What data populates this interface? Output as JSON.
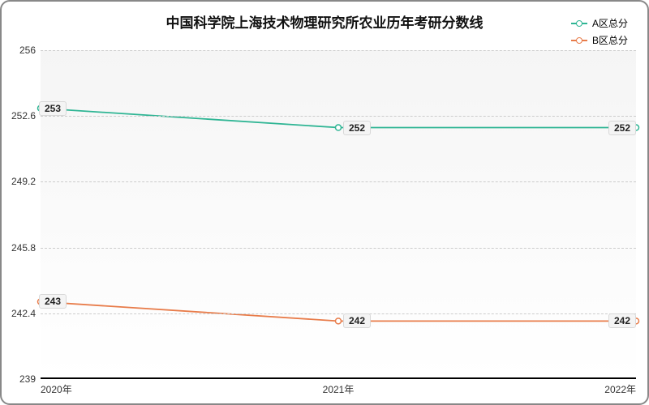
{
  "chart": {
    "type": "line",
    "title": "中国科学院上海技术物理研究所农业历年考研分数线",
    "title_fontsize": 17,
    "title_color": "#111111",
    "background_color": "#ffffff",
    "plot_background_top": "#f5f5f5",
    "plot_background_bottom": "#ffffff",
    "border_color": "#888888",
    "axis_line_color": "#000000",
    "grid_color": "#cccccc",
    "grid_dash": "4,4",
    "label_fontsize": 12,
    "label_color": "#333333",
    "data_label_fontsize": 12,
    "data_label_bg": "#f4f4f4",
    "data_label_border": "#d8d8d8",
    "ylim": [
      239,
      256
    ],
    "yticks": [
      239,
      242.4,
      245.8,
      249.2,
      252.6,
      256
    ],
    "x_categories": [
      "2020年",
      "2021年",
      "2022年"
    ],
    "line_width": 1.8,
    "marker_radius": 3.5,
    "series": [
      {
        "name": "A区总分",
        "color": "#2fb594",
        "values": [
          253,
          252,
          252
        ]
      },
      {
        "name": "B区总分",
        "color": "#e87c4a",
        "values": [
          243,
          242,
          242
        ]
      }
    ],
    "legend": {
      "position": "top-right",
      "items": [
        "A区总分",
        "B区总分"
      ]
    }
  }
}
